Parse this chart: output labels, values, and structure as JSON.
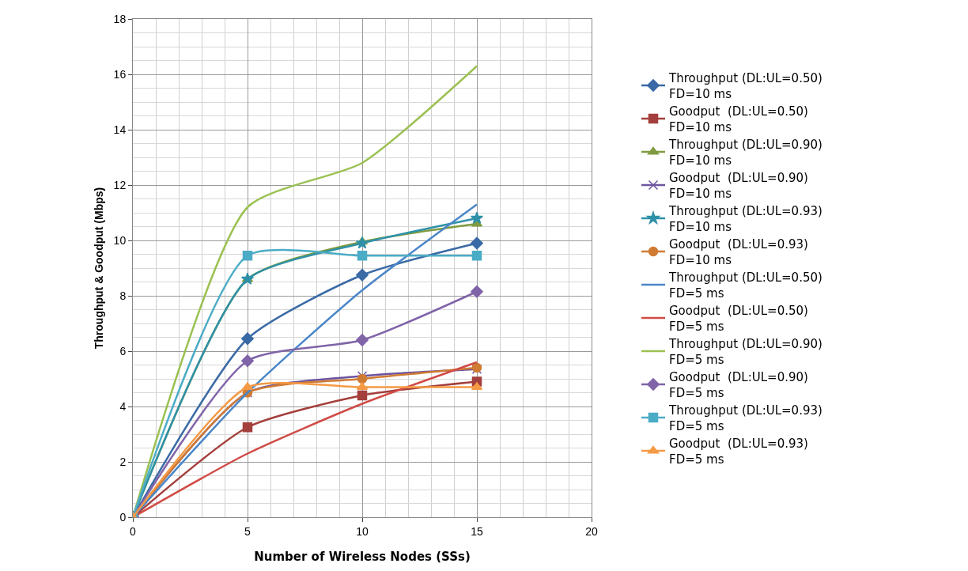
{
  "chart_data": {
    "type": "line",
    "xlabel": "Number of Wireless Nodes (SSs)",
    "ylabel": "Throughput & Goodput (Mbps)",
    "x": [
      0,
      5,
      10,
      15
    ],
    "xlim": [
      0,
      20
    ],
    "xticks": [
      0,
      5,
      10,
      15,
      20
    ],
    "ylim": [
      0,
      18
    ],
    "yticks": [
      0,
      2,
      4,
      6,
      8,
      10,
      12,
      14,
      16,
      18
    ],
    "grid": true,
    "legend": "right",
    "line_style": "solid",
    "series": [
      {
        "name": "Throughput (DL:UL=0.50)\nFD=10 ms",
        "color": "#3a6aa5",
        "marker": "diamond",
        "values": [
          0,
          6.45,
          8.75,
          9.9
        ]
      },
      {
        "name": "Goodput  (DL:UL=0.50)\nFD=10 ms",
        "color": "#a33f3c",
        "marker": "square",
        "values": [
          0,
          3.25,
          4.4,
          4.9
        ]
      },
      {
        "name": "Throughput (DL:UL=0.90)\nFD=10 ms",
        "color": "#7f9b3f",
        "marker": "triangle",
        "values": [
          0,
          8.6,
          9.95,
          10.6
        ]
      },
      {
        "name": "Goodput  (DL:UL=0.90)\nFD=10 ms",
        "color": "#6c54a0",
        "marker": "cross",
        "values": [
          0,
          4.5,
          5.1,
          5.35
        ]
      },
      {
        "name": "Throughput (DL:UL=0.93)\nFD=10 ms",
        "color": "#2f91a8",
        "marker": "star",
        "values": [
          0,
          8.6,
          9.9,
          10.8
        ]
      },
      {
        "name": "Goodput  (DL:UL=0.93)\nFD=10 ms",
        "color": "#d07b34",
        "marker": "circle",
        "values": [
          0,
          4.5,
          5.0,
          5.4
        ]
      },
      {
        "name": "Throughput (DL:UL=0.50)\nFD=5 ms",
        "color": "#4a86c8",
        "marker": "none",
        "values": [
          0,
          4.5,
          8.2,
          11.3
        ]
      },
      {
        "name": "Goodput  (DL:UL=0.50)\nFD=5 ms",
        "color": "#d04b46",
        "marker": "none",
        "values": [
          0,
          2.3,
          4.1,
          5.6
        ]
      },
      {
        "name": "Throughput (DL:UL=0.90)\nFD=5 ms",
        "color": "#9bc152",
        "marker": "none",
        "values": [
          0,
          11.2,
          12.8,
          16.3
        ]
      },
      {
        "name": "Goodput  (DL:UL=0.90)\nFD=5 ms",
        "color": "#8064a8",
        "marker": "diamond",
        "values": [
          0,
          5.65,
          6.4,
          8.15
        ]
      },
      {
        "name": "Throughput (DL:UL=0.93)\nFD=5 ms",
        "color": "#4bacc6",
        "marker": "square",
        "values": [
          0,
          9.45,
          9.45,
          9.45
        ]
      },
      {
        "name": "Goodput  (DL:UL=0.93)\nFD=5 ms",
        "color": "#f59a45",
        "marker": "triangle",
        "values": [
          0,
          4.7,
          4.7,
          4.7
        ]
      }
    ]
  }
}
